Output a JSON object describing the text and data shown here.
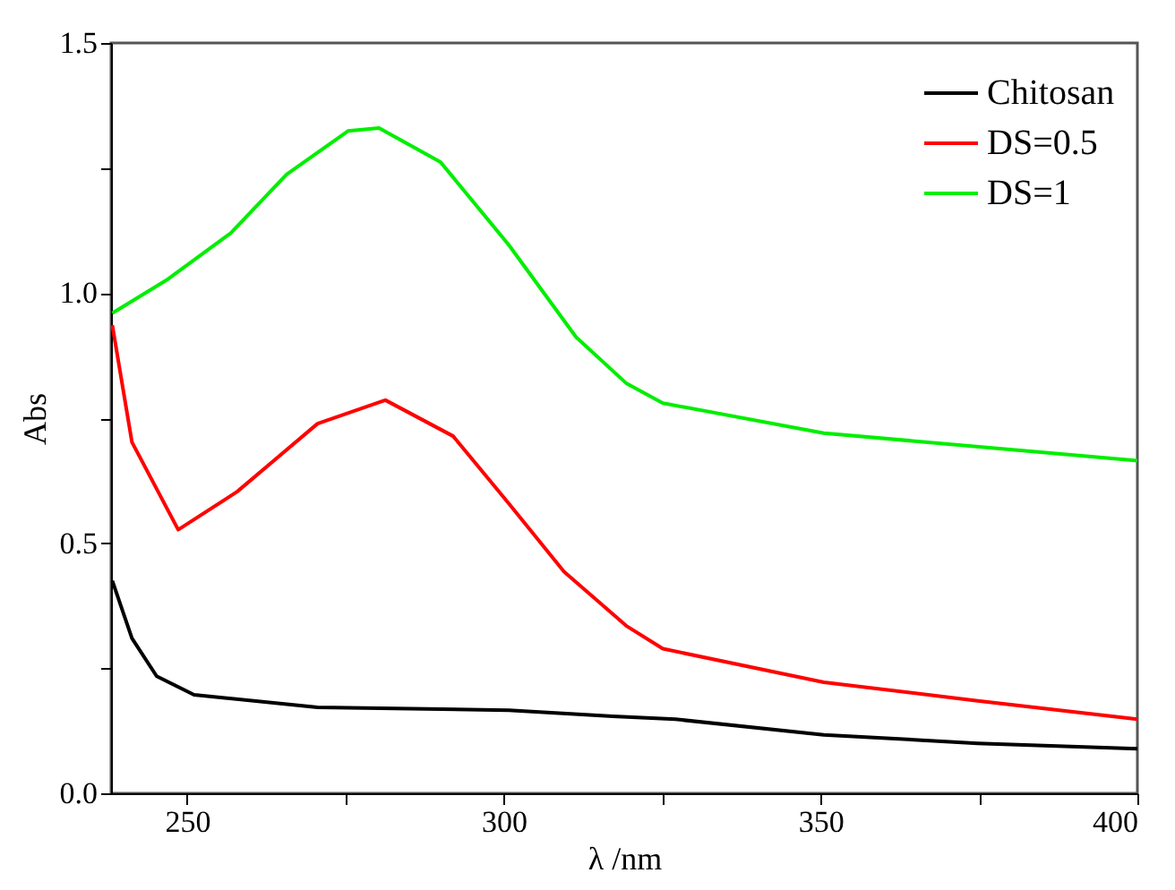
{
  "chart_data": {
    "type": "line",
    "xlabel": "λ /nm",
    "ylabel": "Abs",
    "xlim": [
      238,
      400
    ],
    "xticks": [
      250,
      {
        "value": 275,
        "label": null
      },
      300,
      {
        "value": 325,
        "label": null
      },
      350,
      {
        "value": 375,
        "label": null
      },
      400
    ],
    "ylim": [
      0,
      1.5
    ],
    "yticks": [
      {
        "value": 0,
        "label": "0.0"
      },
      {
        "value": 0.25,
        "label": null
      },
      {
        "value": 0.5,
        "label": "0.5"
      },
      {
        "value": 0.75,
        "label": null
      },
      {
        "value": 1,
        "label": "1.0"
      },
      {
        "value": 1.25,
        "label": null
      },
      {
        "value": 1.5,
        "label": "1.5"
      }
    ],
    "grid": false,
    "legend": "top right",
    "line_style": "solid",
    "marker": "none",
    "series": [
      {
        "name": "Chitosan",
        "color": "#000000",
        "x": [
          238.2,
          241.3,
          245.2,
          251.1,
          270.6,
          300.8,
          317.2,
          327.1,
          350.5,
          374.8,
          400
        ],
        "values": [
          0.425,
          0.31,
          0.234,
          0.197,
          0.172,
          0.166,
          0.154,
          0.148,
          0.117,
          0.1,
          0.089
        ]
      },
      {
        "name": "DS=0.5",
        "color": "#ff0000",
        "x": [
          238.2,
          241.3,
          248.6,
          257.9,
          270.6,
          281.3,
          292,
          300.8,
          309.5,
          319.3,
          325.1,
          350.5,
          374.8,
          400
        ],
        "values": [
          0.936,
          0.702,
          0.527,
          0.603,
          0.739,
          0.786,
          0.714,
          0.579,
          0.443,
          0.335,
          0.289,
          0.222,
          0.185,
          0.148
        ]
      },
      {
        "name": "DS=1",
        "color": "#00ee00",
        "x": [
          238.2,
          247,
          256.9,
          265.7,
          275.4,
          280.3,
          290,
          300.8,
          311.4,
          319.3,
          325.1,
          350.5,
          400
        ],
        "values": [
          0.96,
          1.028,
          1.12,
          1.237,
          1.324,
          1.33,
          1.262,
          1.096,
          0.912,
          0.82,
          0.78,
          0.72,
          0.665
        ]
      }
    ]
  }
}
